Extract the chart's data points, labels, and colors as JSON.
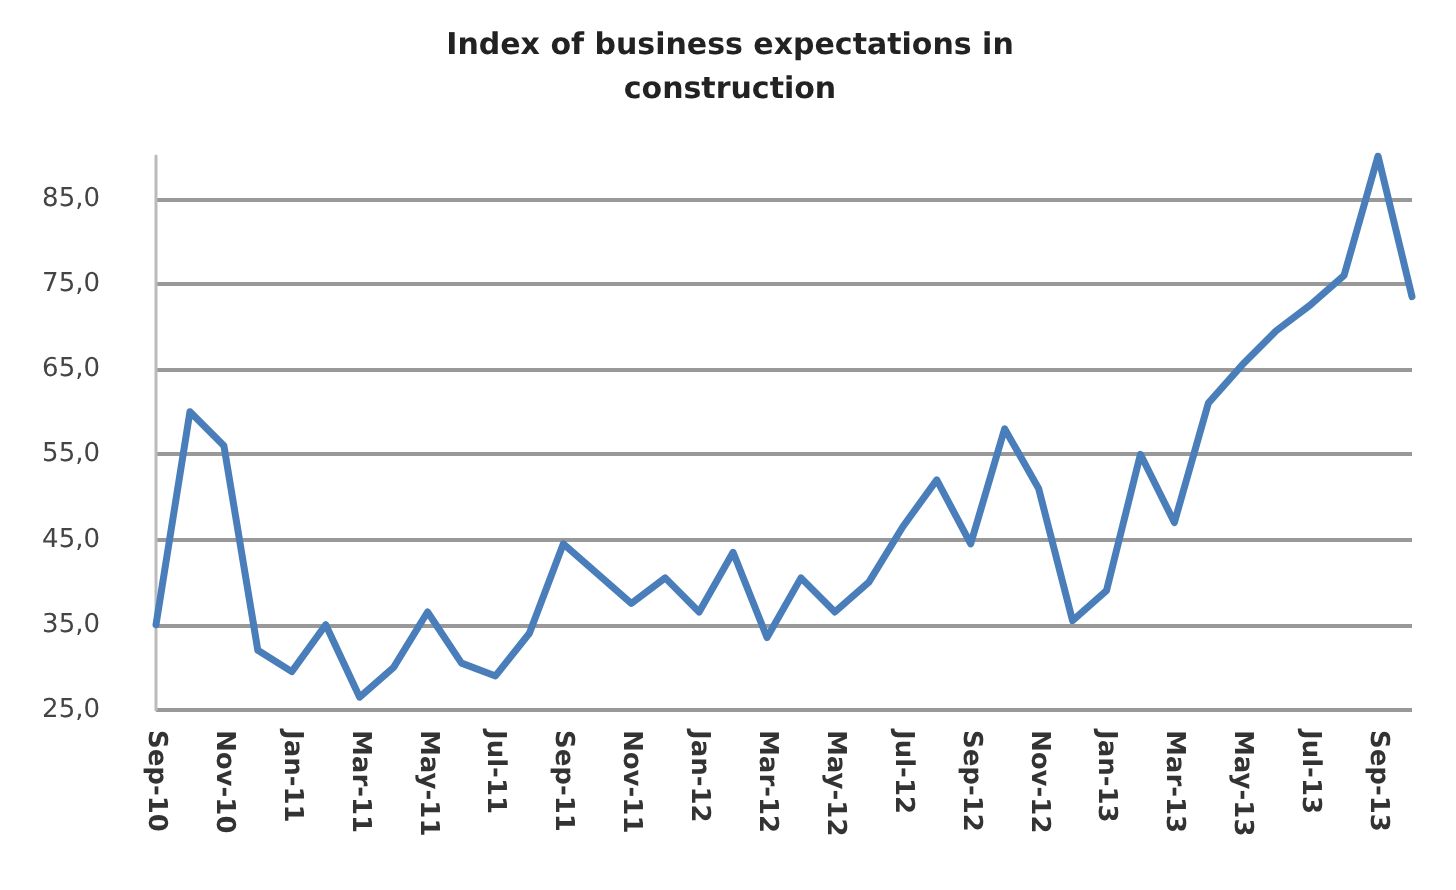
{
  "chart_data": {
    "type": "line",
    "title": "Index of business expectations in\nconstruction",
    "categories": [
      "Sep-10",
      null,
      "Nov-10",
      null,
      "Jan-11",
      null,
      "Mar-11",
      null,
      "May-11",
      null,
      "Jul-11",
      null,
      "Sep-11",
      null,
      "Nov-11",
      null,
      "Jan-12",
      null,
      "Mar-12",
      null,
      "May-12",
      null,
      "Jul-12",
      null,
      "Sep-12",
      null,
      "Nov-12",
      null,
      "Jan-13",
      null,
      "Mar-13",
      null,
      "May-13",
      null,
      "Jul-13",
      null,
      "Sep-13",
      null
    ],
    "series": [
      {
        "color": "#4a7ebb",
        "values": [
          35,
          60,
          56,
          32,
          29.5,
          35,
          26.5,
          30,
          36.5,
          30.5,
          29,
          34,
          44.5,
          41,
          37.5,
          40.5,
          36.5,
          43.5,
          33.5,
          40.5,
          36.5,
          40,
          46.5,
          52,
          44.5,
          58,
          51,
          35.5,
          39,
          55,
          47,
          61,
          65.5,
          69.5,
          72.5,
          76,
          90,
          73.5
        ]
      }
    ],
    "ylim": [
      25,
      90
    ],
    "yticks": [
      {
        "value": 25,
        "label": "25,0"
      },
      {
        "value": 35,
        "label": "35,0"
      },
      {
        "value": 45,
        "label": "45,0"
      },
      {
        "value": 55,
        "label": "55,0"
      },
      {
        "value": 65,
        "label": "65,0"
      },
      {
        "value": 75,
        "label": "75,0"
      },
      {
        "value": 85,
        "label": "85,0"
      }
    ],
    "grid": "y",
    "marker": "none",
    "line_style": "solid"
  }
}
